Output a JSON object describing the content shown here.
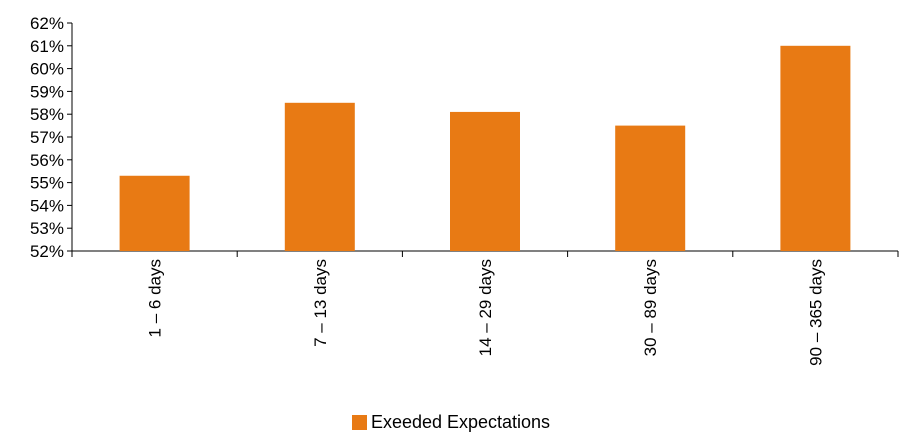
{
  "chart_data": {
    "type": "bar",
    "title": "",
    "xlabel": "",
    "ylabel": "",
    "categories": [
      "1 – 6 days",
      "7 – 13 days",
      "14 – 29 days",
      "30 – 89 days",
      "90 – 365 days"
    ],
    "series": [
      {
        "name": "Exeeded Expectations",
        "color": "#E87A14",
        "values": [
          55.3,
          58.5,
          58.1,
          57.5,
          61.0
        ]
      }
    ],
    "ylim": [
      52,
      62
    ],
    "yticks": [
      "52%",
      "53%",
      "54%",
      "55%",
      "56%",
      "57%",
      "58%",
      "59%",
      "60%",
      "61%",
      "62%"
    ],
    "grid": false,
    "legend_position": "bottom"
  }
}
